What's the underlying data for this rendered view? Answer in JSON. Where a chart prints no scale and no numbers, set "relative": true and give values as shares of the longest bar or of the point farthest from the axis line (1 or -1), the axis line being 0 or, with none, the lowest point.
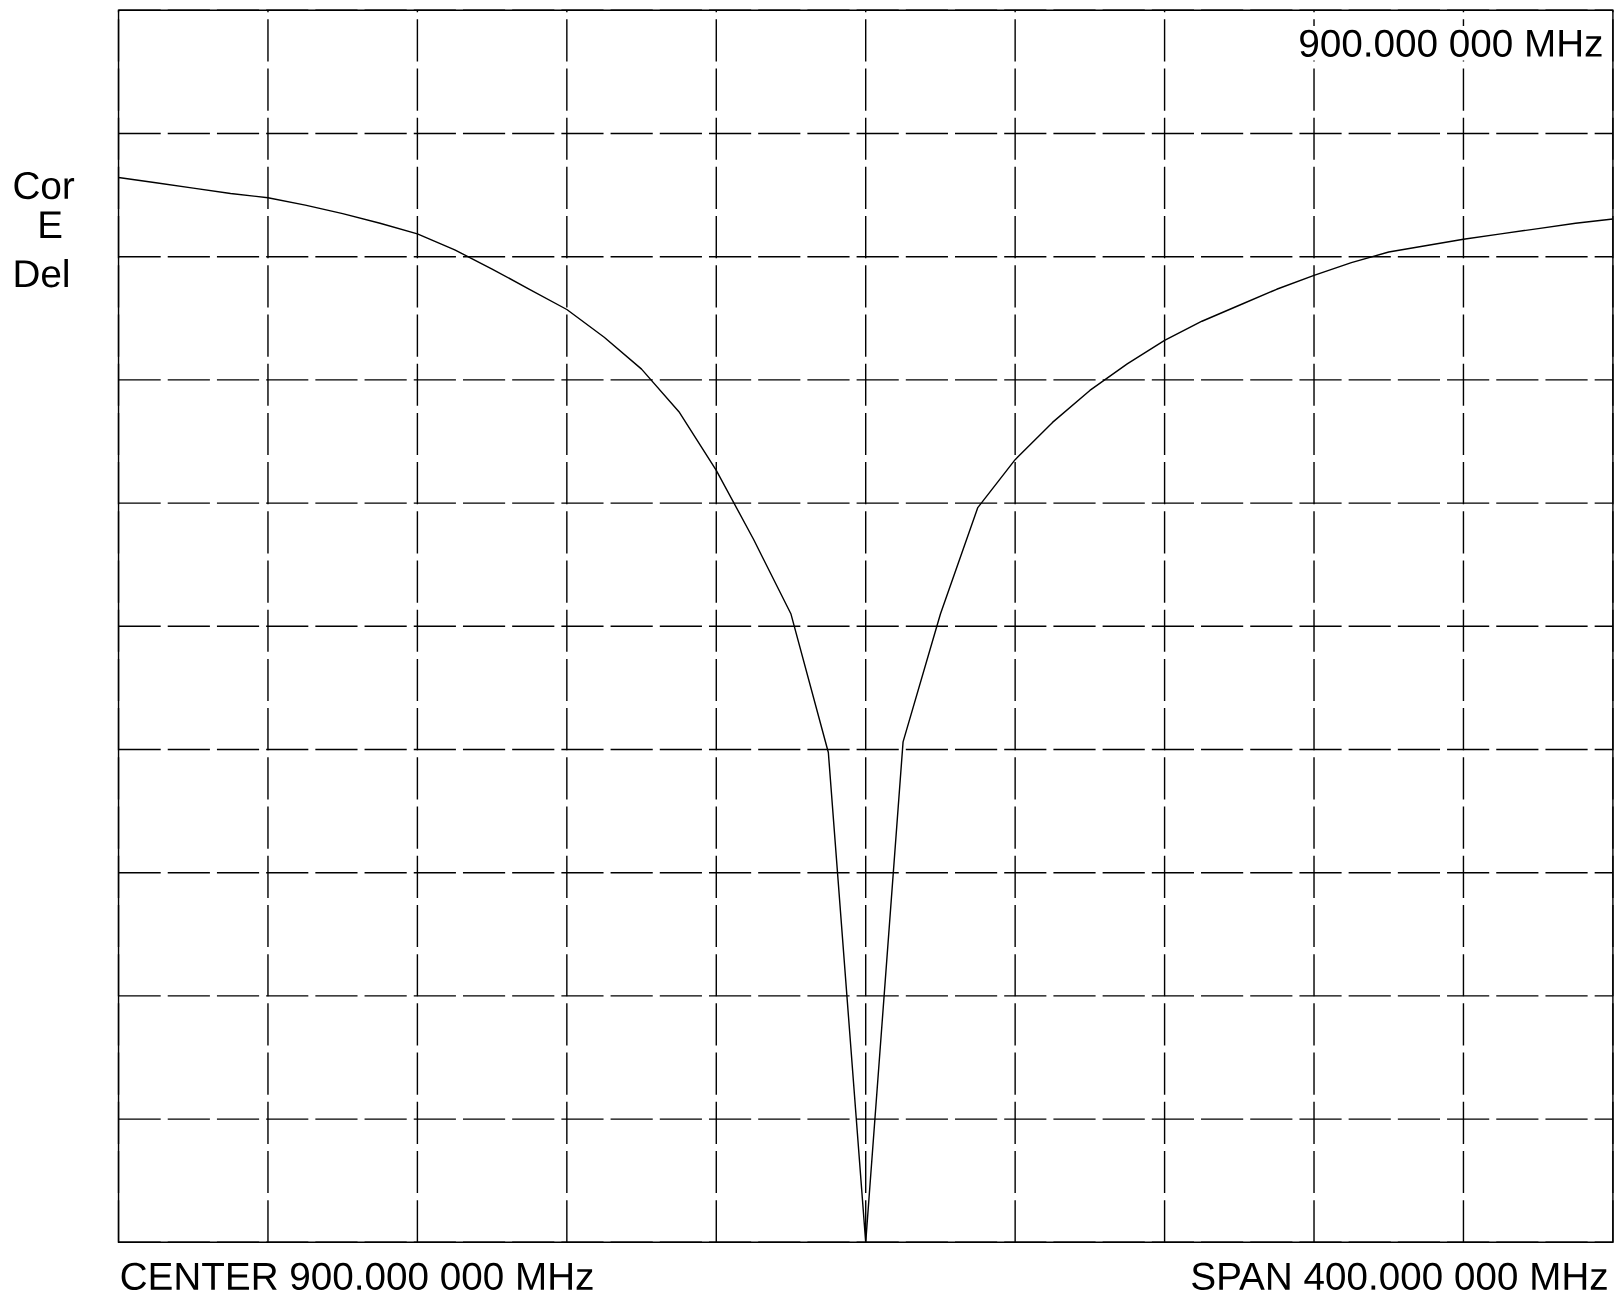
{
  "chart_data": {
    "type": "line",
    "relative": true,
    "categories": [
      null,
      null,
      null,
      null,
      null,
      null,
      null,
      null,
      null,
      null,
      null,
      null,
      null,
      null,
      null,
      null,
      null,
      null,
      null,
      null,
      null,
      null,
      null,
      null,
      null,
      null,
      null,
      null,
      null,
      null,
      null,
      null,
      null,
      null,
      null,
      null,
      null,
      null,
      null,
      null,
      null
    ],
    "series": [
      {
        "color": "#000000",
        "values": [
          1,
          0.995,
          0.99,
          0.985,
          0.981,
          0.974,
          0.966,
          0.957,
          0.947,
          0.932,
          0.914,
          0.895,
          0.876,
          0.85,
          0.82,
          0.78,
          0.725,
          0.66,
          0.59,
          0.46,
          0,
          0.47,
          0.59,
          0.69,
          0.735,
          0.77,
          0.8,
          0.825,
          0.847,
          0.865,
          0.88,
          0.895,
          0.908,
          0.92,
          0.93,
          0.936,
          0.942,
          0.947,
          0.952,
          0.957,
          0.961
        ]
      }
    ],
    "grid": true,
    "marker": "none",
    "line_style": "solid",
    "annotations": [
      "900.000 000 MHz",
      "Cor",
      "E",
      "Del",
      "CENTER 900.000 000 MHz",
      "SPAN 400.000 000 MHz"
    ]
  }
}
